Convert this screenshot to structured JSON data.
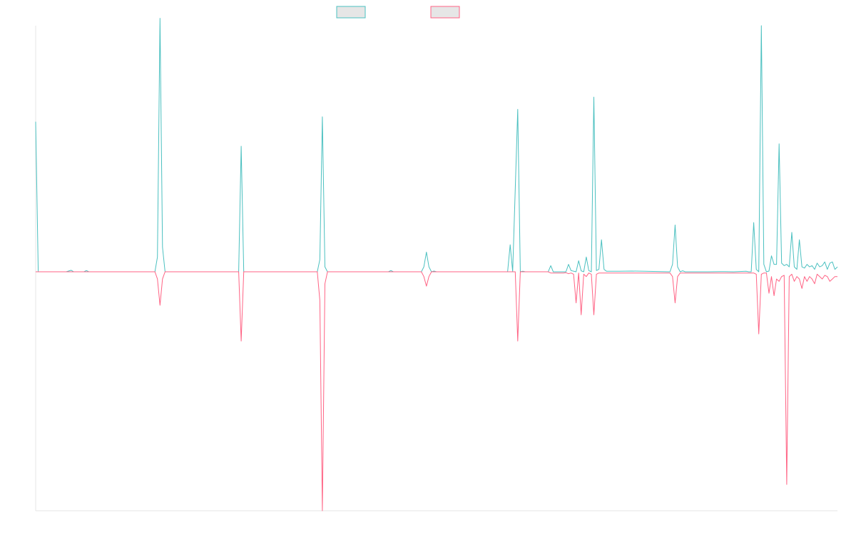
{
  "chart_data": {
    "type": "line",
    "title": "",
    "xlabel": "",
    "ylabel": "",
    "legend": {
      "position": "top-center",
      "labels": [
        "",
        ""
      ]
    },
    "grid": false,
    "ylim": [
      -1,
      1
    ],
    "series": [
      {
        "color": "#4bc0c0",
        "points": [
          [
            0,
            0.61
          ],
          [
            1,
            0.0
          ],
          [
            12,
            0.0
          ],
          [
            14,
            0.006
          ],
          [
            15,
            0.0
          ],
          [
            19,
            0.0
          ],
          [
            20,
            0.005
          ],
          [
            21,
            0.0
          ],
          [
            47,
            0.0
          ],
          [
            48,
            0.06
          ],
          [
            49,
            1.03
          ],
          [
            50,
            0.1
          ],
          [
            51,
            0.0
          ],
          [
            80,
            0.0
          ],
          [
            81,
            0.51
          ],
          [
            82,
            0.0
          ],
          [
            111,
            0.0
          ],
          [
            112,
            0.05
          ],
          [
            113,
            0.63
          ],
          [
            114,
            0.02
          ],
          [
            115,
            0.0
          ],
          [
            139,
            0.0
          ],
          [
            140,
            0.005
          ],
          [
            141,
            0.0
          ],
          [
            152,
            0.0
          ],
          [
            153,
            0.02
          ],
          [
            154,
            0.08
          ],
          [
            155,
            0.02
          ],
          [
            156,
            0.0
          ],
          [
            157,
            0.003
          ],
          [
            158,
            0.0
          ],
          [
            186,
            0.0
          ],
          [
            187,
            0.11
          ],
          [
            188,
            0.0
          ],
          [
            190,
            0.66
          ],
          [
            191,
            0.0
          ],
          [
            192,
            0.002
          ],
          [
            193,
            0.0
          ],
          [
            202,
            0.0
          ],
          [
            203,
            0.025
          ],
          [
            204,
            0.0
          ],
          [
            209,
            0.0
          ],
          [
            210,
            0.03
          ],
          [
            211,
            0.005
          ],
          [
            213,
            0.0
          ],
          [
            214,
            0.045
          ],
          [
            215,
            0.004
          ],
          [
            216,
            0.0
          ],
          [
            217,
            0.06
          ],
          [
            218,
            0.005
          ],
          [
            219,
            0.0
          ],
          [
            220,
            0.71
          ],
          [
            221,
            0.005
          ],
          [
            222,
            0.01
          ],
          [
            223,
            0.13
          ],
          [
            224,
            0.01
          ],
          [
            225,
            0.002
          ],
          [
            230,
            0.002
          ],
          [
            235,
            0.003
          ],
          [
            240,
            0.002
          ],
          [
            250,
            0.0
          ],
          [
            251,
            0.03
          ],
          [
            252,
            0.19
          ],
          [
            253,
            0.02
          ],
          [
            254,
            0.0
          ],
          [
            255,
            0.004
          ],
          [
            256,
            0.0
          ],
          [
            265,
            0.0
          ],
          [
            270,
            0.001
          ],
          [
            275,
            0.0
          ],
          [
            280,
            0.002
          ],
          [
            281,
            0.0
          ],
          [
            282,
            0.0
          ],
          [
            283,
            0.2
          ],
          [
            284,
            0.01
          ],
          [
            285,
            0.0
          ],
          [
            286,
            1.0
          ],
          [
            287,
            0.03
          ],
          [
            288,
            0.0
          ],
          [
            289,
            0.003
          ],
          [
            290,
            0.065
          ],
          [
            291,
            0.03
          ],
          [
            292,
            0.03
          ],
          [
            293,
            0.52
          ],
          [
            294,
            0.035
          ],
          [
            295,
            0.025
          ],
          [
            296,
            0.03
          ],
          [
            297,
            0.02
          ],
          [
            298,
            0.16
          ],
          [
            299,
            0.02
          ],
          [
            300,
            0.01
          ],
          [
            301,
            0.13
          ],
          [
            302,
            0.02
          ],
          [
            303,
            0.015
          ],
          [
            304,
            0.03
          ],
          [
            305,
            0.02
          ],
          [
            306,
            0.025
          ],
          [
            307,
            0.01
          ],
          [
            308,
            0.035
          ],
          [
            309,
            0.02
          ],
          [
            310,
            0.025
          ],
          [
            311,
            0.04
          ],
          [
            312,
            0.01
          ],
          [
            313,
            0.035
          ],
          [
            314,
            0.04
          ],
          [
            315,
            0.01
          ],
          [
            316,
            0.02
          ]
        ]
      },
      {
        "color": "#ff6384",
        "points": [
          [
            0,
            0.0
          ],
          [
            47,
            0.0
          ],
          [
            48,
            -0.03
          ],
          [
            49,
            -0.14
          ],
          [
            50,
            -0.03
          ],
          [
            51,
            0.0
          ],
          [
            80,
            0.0
          ],
          [
            81,
            -0.29
          ],
          [
            82,
            0.0
          ],
          [
            111,
            0.0
          ],
          [
            112,
            -0.12
          ],
          [
            113,
            -1.0
          ],
          [
            114,
            -0.05
          ],
          [
            115,
            0.0
          ],
          [
            152,
            0.0
          ],
          [
            153,
            -0.02
          ],
          [
            154,
            -0.06
          ],
          [
            155,
            -0.02
          ],
          [
            156,
            0.0
          ],
          [
            189,
            0.0
          ],
          [
            190,
            -0.29
          ],
          [
            191,
            0.0
          ],
          [
            202,
            0.0
          ],
          [
            203,
            -0.005
          ],
          [
            208,
            -0.005
          ],
          [
            209,
            -0.004
          ],
          [
            210,
            -0.008
          ],
          [
            211,
            -0.005
          ],
          [
            212,
            -0.01
          ],
          [
            213,
            -0.13
          ],
          [
            214,
            -0.005
          ],
          [
            215,
            -0.18
          ],
          [
            216,
            -0.01
          ],
          [
            217,
            -0.02
          ],
          [
            218,
            -0.005
          ],
          [
            219,
            -0.01
          ],
          [
            220,
            -0.18
          ],
          [
            221,
            -0.01
          ],
          [
            222,
            -0.005
          ],
          [
            250,
            -0.005
          ],
          [
            251,
            -0.02
          ],
          [
            252,
            -0.13
          ],
          [
            253,
            -0.02
          ],
          [
            254,
            -0.005
          ],
          [
            283,
            -0.005
          ],
          [
            284,
            -0.01
          ],
          [
            285,
            -0.26
          ],
          [
            286,
            -0.01
          ],
          [
            287,
            -0.005
          ],
          [
            288,
            -0.005
          ],
          [
            289,
            -0.09
          ],
          [
            290,
            -0.02
          ],
          [
            291,
            -0.1
          ],
          [
            292,
            -0.03
          ],
          [
            293,
            -0.04
          ],
          [
            294,
            -0.02
          ],
          [
            295,
            -0.015
          ],
          [
            296,
            -0.89
          ],
          [
            297,
            -0.02
          ],
          [
            298,
            -0.01
          ],
          [
            299,
            -0.04
          ],
          [
            300,
            -0.02
          ],
          [
            301,
            -0.03
          ],
          [
            302,
            -0.07
          ],
          [
            303,
            -0.02
          ],
          [
            304,
            -0.04
          ],
          [
            305,
            -0.02
          ],
          [
            306,
            -0.03
          ],
          [
            307,
            -0.05
          ],
          [
            308,
            -0.01
          ],
          [
            309,
            -0.02
          ],
          [
            310,
            -0.03
          ],
          [
            311,
            -0.015
          ],
          [
            312,
            -0.02
          ],
          [
            313,
            -0.04
          ],
          [
            314,
            -0.03
          ],
          [
            315,
            -0.02
          ],
          [
            316,
            -0.02
          ]
        ]
      }
    ]
  }
}
